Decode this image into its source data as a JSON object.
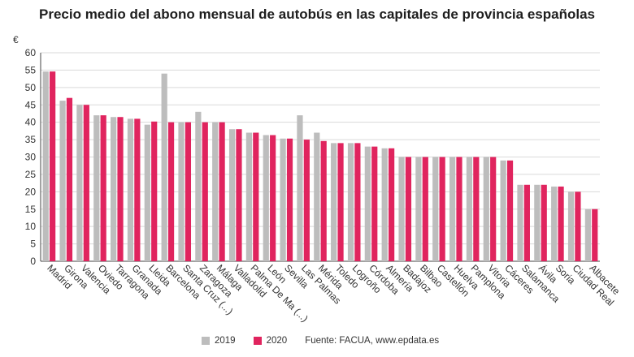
{
  "chart_data": {
    "type": "bar",
    "title": "Precio medio del abono mensual de autobús en las capitales de provincia españolas",
    "ylabel": "€",
    "xlabel": "",
    "ylim": [
      0,
      60
    ],
    "yticks": [
      0,
      5,
      10,
      15,
      20,
      25,
      30,
      35,
      40,
      45,
      50,
      55,
      60
    ],
    "categories": [
      "Madrid",
      "Girona",
      "Valencia",
      "Oviedo",
      "Tarragona",
      "Granada",
      "Lleida",
      "Barcelona",
      "Santa Cruz (...)",
      "Zaragoza",
      "Málaga",
      "Valladolid",
      "Palma De Ma (...)",
      "León",
      "Sevilla",
      "Las Palmas",
      "Mérida",
      "Toledo",
      "Logroño",
      "Córdoba",
      "Almería",
      "Badajoz",
      "Bilbao",
      "Castellón",
      "Huelva",
      "Pamplona",
      "Vitoria",
      "Cáceres",
      "Salamanca",
      "Ávila",
      "Soria",
      "Ciudad Real",
      "Albacete"
    ],
    "series": [
      {
        "name": "2019",
        "color": "#bdbdbd",
        "values": [
          54.6,
          46.2,
          45,
          42,
          41.5,
          41,
          39.3,
          54,
          40,
          43,
          40,
          38,
          37,
          36.3,
          35.3,
          42,
          37,
          34,
          34,
          33,
          32.5,
          30,
          30,
          30,
          30,
          30,
          30,
          29,
          22,
          22,
          21.5,
          20,
          15
        ]
      },
      {
        "name": "2020",
        "color": "#e0245e",
        "values": [
          54.6,
          47,
          45,
          42,
          41.5,
          41,
          40.2,
          40,
          40,
          40,
          40,
          38,
          37,
          36.3,
          35.3,
          35,
          34.6,
          34,
          34,
          33,
          32.5,
          30,
          30,
          30,
          30,
          30,
          30,
          29,
          22,
          22,
          21.5,
          20,
          15
        ]
      }
    ],
    "legend_position": "bottom",
    "grid": true
  },
  "source": "Fuente: FACUA, www.epdata.es"
}
